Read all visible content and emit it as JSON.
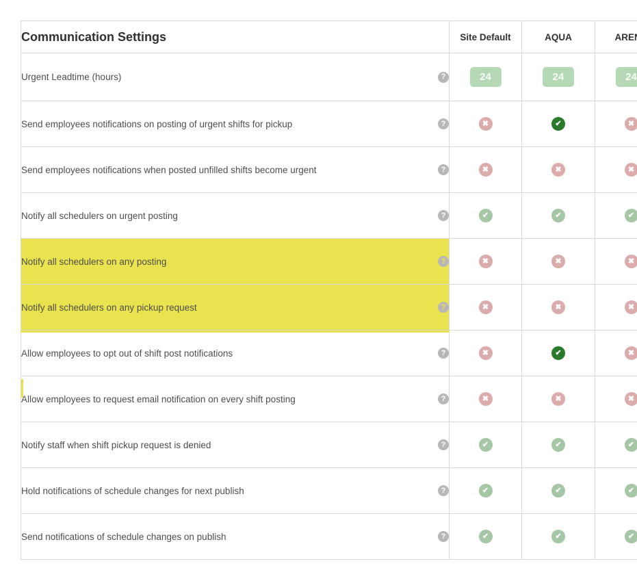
{
  "table": {
    "title": "Communication Settings",
    "columns": [
      "Site Default",
      "AQUA",
      "ARENA"
    ],
    "icons": {
      "help": "?",
      "cross": "✖",
      "check": "✔"
    },
    "colors": {
      "highlight": "#e8e34e",
      "badge": "#b5d8b5",
      "check": "#a6c7a6",
      "check_active": "#2b7a2b",
      "cross": "#dcacac",
      "border": "#d9d9d9",
      "text": "#4d4d4d",
      "heading": "#303030",
      "help": "#b7b7b7"
    },
    "rows": [
      {
        "label": "Urgent Leadtime (hours)",
        "type": "value",
        "values": [
          "24",
          "24",
          "24"
        ],
        "highlighted": false
      },
      {
        "label": "Send employees notifications on posting of urgent shifts for pickup",
        "type": "toggle",
        "values": [
          "cross",
          "check-active",
          "cross"
        ],
        "highlighted": false
      },
      {
        "label": "Send employees notifications when posted unfilled shifts become urgent",
        "type": "toggle",
        "values": [
          "cross",
          "cross",
          "cross"
        ],
        "highlighted": false
      },
      {
        "label": "Notify all schedulers on urgent posting",
        "type": "toggle",
        "values": [
          "check",
          "check",
          "check"
        ],
        "highlighted": false
      },
      {
        "label": "Notify all schedulers on any posting",
        "type": "toggle",
        "values": [
          "cross",
          "cross",
          "cross"
        ],
        "highlighted": true
      },
      {
        "label": "Notify all schedulers on any pickup request",
        "type": "toggle",
        "values": [
          "cross",
          "cross",
          "cross"
        ],
        "highlighted": true
      },
      {
        "label": "Allow employees to opt out of shift post notifications",
        "type": "toggle",
        "values": [
          "cross",
          "check-active",
          "cross"
        ],
        "highlighted": false
      },
      {
        "label": "Allow employees to request email notification on every shift posting",
        "type": "toggle",
        "values": [
          "cross",
          "cross",
          "cross"
        ],
        "highlighted": false,
        "left_mark": true
      },
      {
        "label": "Notify staff when shift pickup request is denied",
        "type": "toggle",
        "values": [
          "check",
          "check",
          "check"
        ],
        "highlighted": false
      },
      {
        "label": "Hold notifications of schedule changes for next publish",
        "type": "toggle",
        "values": [
          "check",
          "check",
          "check"
        ],
        "highlighted": false
      },
      {
        "label": "Send notifications of schedule changes on publish",
        "type": "toggle",
        "values": [
          "check",
          "check",
          "check"
        ],
        "highlighted": false
      }
    ]
  }
}
